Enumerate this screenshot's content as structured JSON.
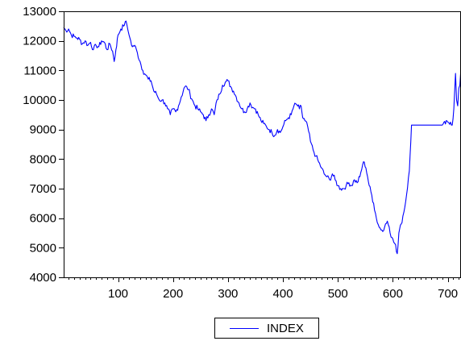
{
  "chart_data": {
    "type": "line",
    "title": "",
    "xlabel": "",
    "ylabel": "",
    "xlim": [
      1,
      724
    ],
    "ylim": [
      4000,
      13000
    ],
    "x_ticks": [
      100,
      200,
      300,
      400,
      500,
      600,
      700
    ],
    "x_tick_labels": [
      "100",
      "200",
      "300",
      "400",
      "500",
      "600",
      "700"
    ],
    "y_ticks": [
      4000,
      5000,
      6000,
      7000,
      8000,
      9000,
      10000,
      11000,
      12000,
      13000
    ],
    "y_tick_labels": [
      "4000",
      "5000",
      "6000",
      "7000",
      "8000",
      "9000",
      "10000",
      "11000",
      "12000",
      "13000"
    ],
    "grid": false,
    "legend": "bottom-center",
    "series": [
      {
        "name": "INDEX",
        "color": "#0000ff",
        "x": [
          1,
          5,
          10,
          15,
          20,
          25,
          30,
          35,
          40,
          45,
          50,
          55,
          60,
          65,
          70,
          75,
          80,
          85,
          90,
          93,
          96,
          100,
          105,
          110,
          113,
          116,
          118,
          120,
          123,
          126,
          130,
          135,
          140,
          145,
          150,
          155,
          160,
          165,
          170,
          175,
          180,
          185,
          190,
          195,
          200,
          205,
          210,
          215,
          220,
          225,
          228,
          231,
          235,
          240,
          245,
          250,
          255,
          260,
          265,
          270,
          275,
          280,
          285,
          290,
          295,
          300,
          305,
          310,
          315,
          320,
          325,
          330,
          335,
          340,
          345,
          350,
          355,
          360,
          365,
          370,
          375,
          380,
          385,
          390,
          395,
          400,
          405,
          410,
          415,
          420,
          425,
          430,
          433,
          436,
          440,
          445,
          450,
          455,
          460,
          465,
          470,
          475,
          480,
          485,
          490,
          495,
          500,
          505,
          510,
          515,
          520,
          525,
          530,
          535,
          540,
          545,
          548,
          551,
          554,
          557,
          560,
          565,
          570,
          575,
          580,
          585,
          590,
          595,
          600,
          605,
          608,
          611,
          615,
          620,
          625,
          630,
          634,
          640,
          650,
          660,
          670,
          680,
          690,
          700,
          705,
          708,
          711,
          714,
          716,
          718,
          720,
          722,
          724
        ],
        "y": [
          12450,
          12350,
          12400,
          12200,
          12150,
          12100,
          12050,
          11900,
          12000,
          11850,
          11950,
          11700,
          11850,
          11800,
          12000,
          11950,
          11700,
          11900,
          11650,
          11300,
          11700,
          12200,
          12400,
          12500,
          12650,
          12550,
          12350,
          12200,
          12000,
          11800,
          11850,
          11600,
          11300,
          11000,
          10850,
          10700,
          10650,
          10300,
          10200,
          10000,
          10000,
          9900,
          9700,
          9500,
          9700,
          9600,
          9800,
          10100,
          10400,
          10450,
          10350,
          10200,
          10000,
          9800,
          9700,
          9600,
          9500,
          9300,
          9500,
          9700,
          9500,
          10000,
          10200,
          10500,
          10600,
          10650,
          10450,
          10300,
          10100,
          9900,
          9700,
          9600,
          9700,
          9900,
          9750,
          9700,
          9500,
          9300,
          9200,
          9100,
          9000,
          8900,
          8800,
          9000,
          8900,
          9100,
          9300,
          9400,
          9500,
          9800,
          9850,
          9700,
          9800,
          9400,
          9300,
          9100,
          8600,
          8300,
          8100,
          7900,
          7700,
          7500,
          7400,
          7300,
          7500,
          7300,
          7100,
          7000,
          7000,
          7100,
          7200,
          7100,
          7300,
          7200,
          7400,
          7800,
          7900,
          7700,
          7400,
          7100,
          6900,
          6500,
          6000,
          5700,
          5600,
          5700,
          5900,
          5500,
          5300,
          5100,
          4800,
          5500,
          5800,
          6200,
          6800,
          7600,
          9150,
          9150,
          9150,
          9150,
          9150,
          9150,
          9150,
          9250,
          9250,
          9150,
          9700,
          10900,
          10000,
          9800,
          10400,
          10500,
          11100
        ]
      }
    ]
  }
}
